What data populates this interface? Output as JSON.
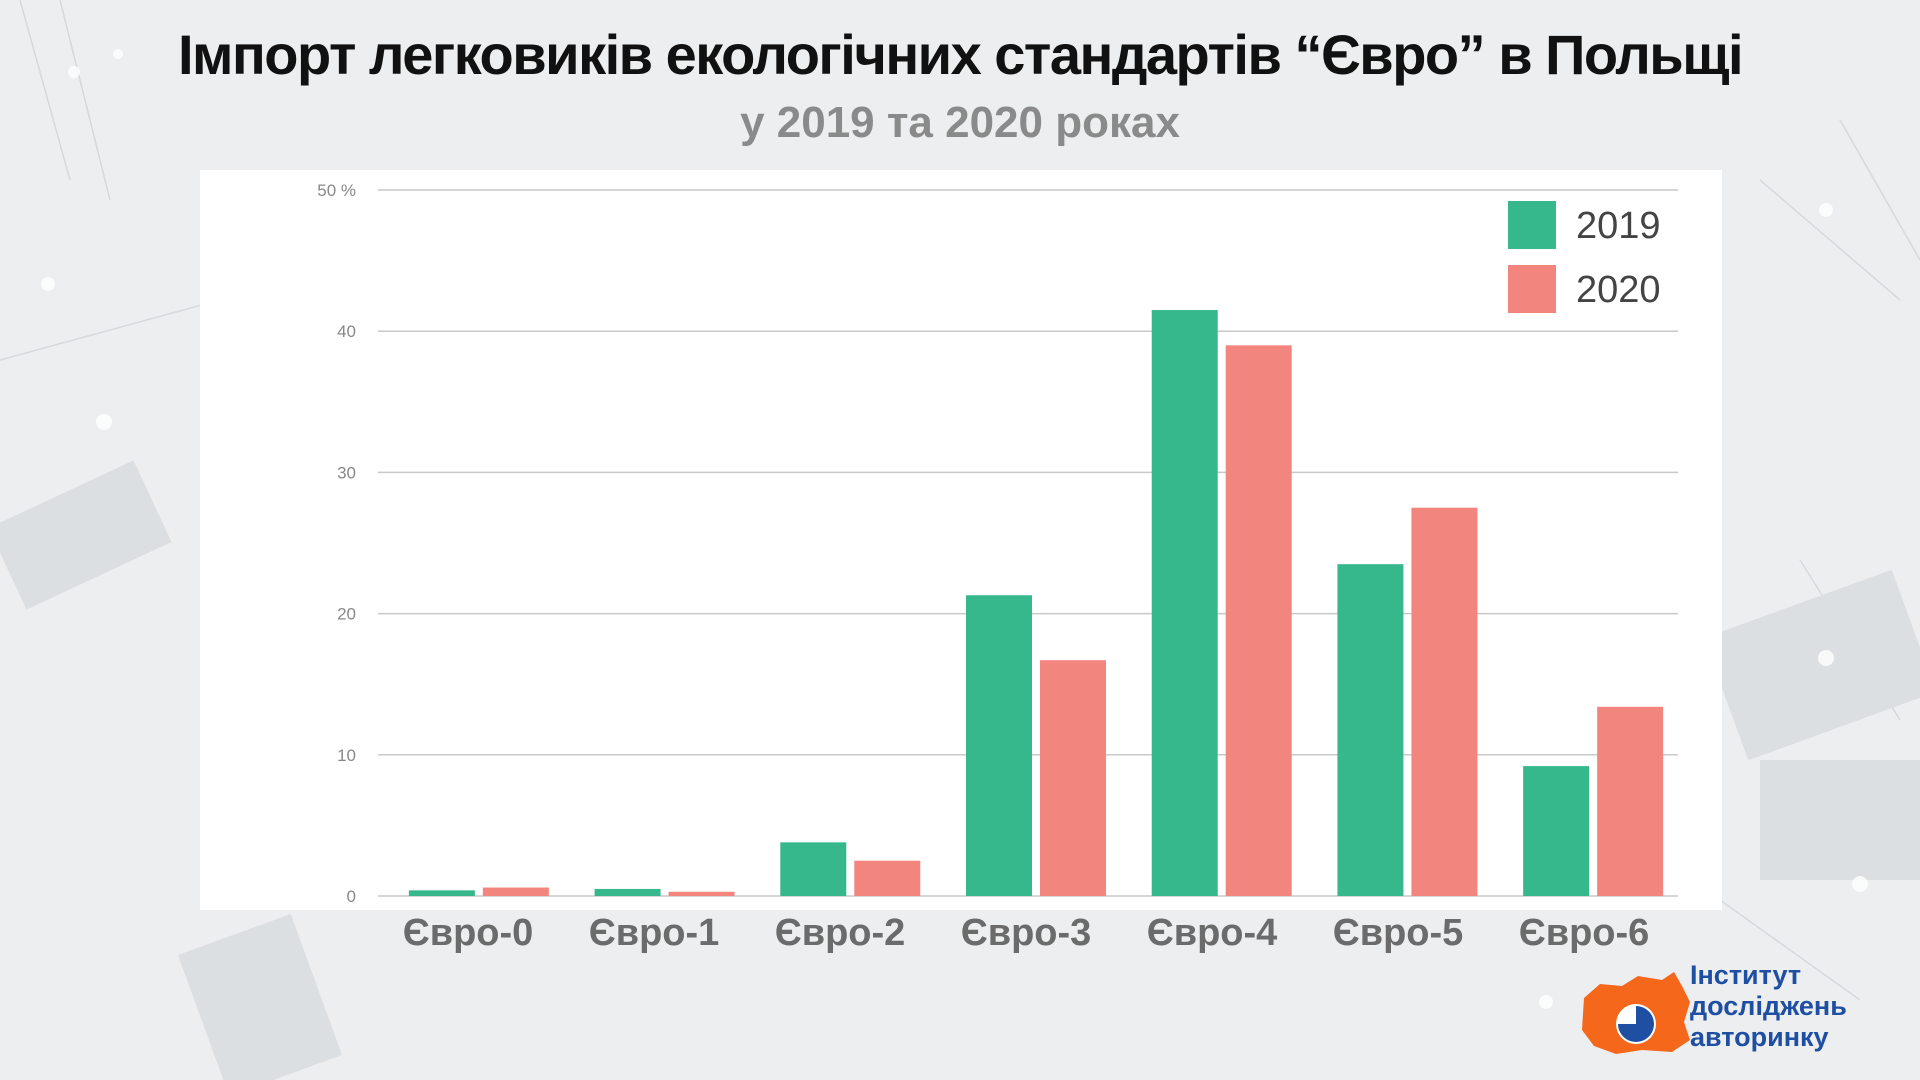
{
  "title": "Імпорт легковиків екологічних стандартів “Євро” в Польщі",
  "subtitle": "у 2019 та 2020 роках",
  "colors": {
    "s2019": "#37b78c",
    "s2020": "#f2857d",
    "grid": "#c9c9c9",
    "tick": "#888888"
  },
  "chart_data": {
    "type": "bar",
    "categories": [
      "Євро-0",
      "Євро-1",
      "Євро-2",
      "Євро-3",
      "Євро-4",
      "Євро-5",
      "Євро-6"
    ],
    "series": [
      {
        "name": "2019",
        "values": [
          0.4,
          0.5,
          3.8,
          21.3,
          41.5,
          23.5,
          9.2
        ]
      },
      {
        "name": "2020",
        "values": [
          0.6,
          0.3,
          2.5,
          16.7,
          39.0,
          27.5,
          13.4
        ]
      }
    ],
    "ylim": [
      0,
      50
    ],
    "yticks": [
      {
        "value": 0,
        "label": "0"
      },
      {
        "value": 10,
        "label": "10"
      },
      {
        "value": 20,
        "label": "20"
      },
      {
        "value": 30,
        "label": "30"
      },
      {
        "value": 40,
        "label": "40"
      },
      {
        "value": 50,
        "label": "50 %"
      }
    ],
    "legend": "top-right",
    "grid": true
  },
  "logo": {
    "line1": "Інститут",
    "line2": "досліджень",
    "line3": "авторинку"
  }
}
